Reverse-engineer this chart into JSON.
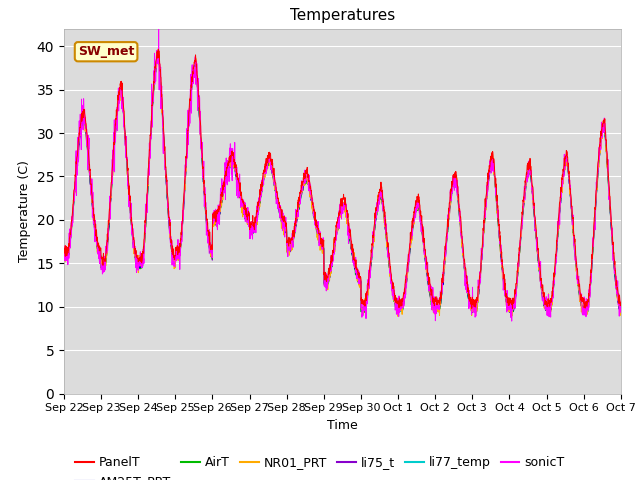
{
  "title": "Temperatures",
  "xlabel": "Time",
  "ylabel": "Temperature (C)",
  "ylim": [
    0,
    42
  ],
  "yticks": [
    0,
    5,
    10,
    15,
    20,
    25,
    30,
    35,
    40
  ],
  "background_color": "#dcdcdc",
  "annotation_text": "SW_met",
  "annotation_bg": "#ffffcc",
  "annotation_border": "#cc8800",
  "annotation_text_color": "#880000",
  "series_colors": {
    "PanelT": "#ff0000",
    "AM25T_PRT": "#0000cc",
    "AirT": "#00bb00",
    "NR01_PRT": "#ffaa00",
    "li75_t": "#8800cc",
    "li77_temp": "#00cccc",
    "sonicT": "#ff00ff"
  },
  "tick_labels": [
    "Sep 22",
    "Sep 23",
    "Sep 24",
    "Sep 25",
    "Sep 26",
    "Sep 27",
    "Sep 28",
    "Sep 29",
    "Sep 30",
    "Oct 1",
    "Oct 2",
    "Oct 3",
    "Oct 4",
    "Oct 5",
    "Oct 6",
    "Oct 7"
  ],
  "legend_fontsize": 9,
  "title_fontsize": 11,
  "tick_fontsize": 8
}
